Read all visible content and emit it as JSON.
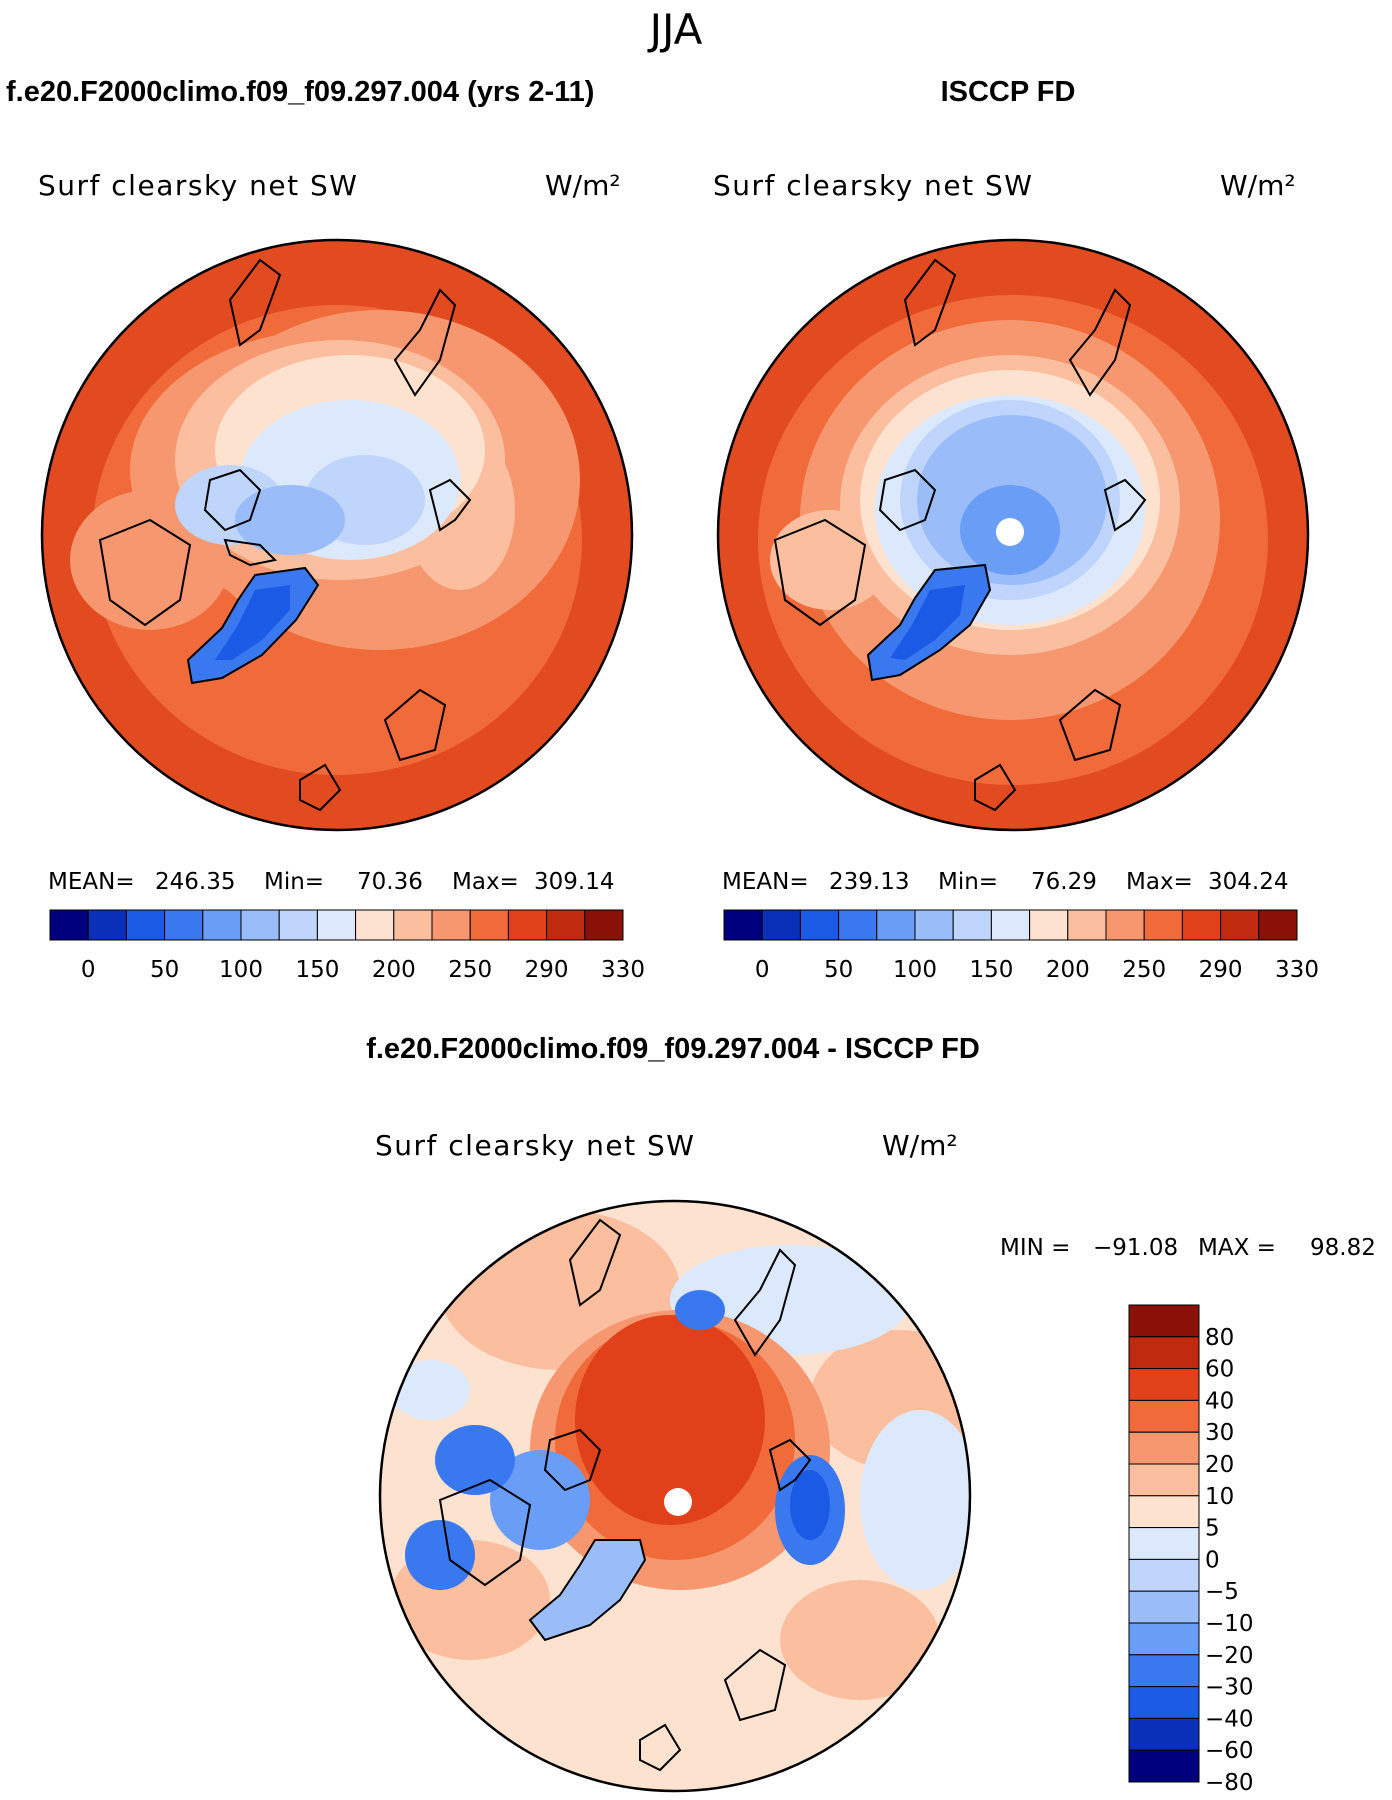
{
  "season": "JJA",
  "panels": [
    {
      "id": "model",
      "title": "f.e20.F2000climo.f09_f09.297.004 (yrs 2-11)",
      "variable": "Surf clearsky net SW",
      "units": "W/m²",
      "stats": {
        "mean_label": "MEAN=",
        "mean": "246.35",
        "min_label": "Min=",
        "min": "70.36",
        "max_label": "Max=",
        "max": "309.14"
      },
      "colorbar": {
        "colors": [
          "#00007f",
          "#0a2fb8",
          "#1a5ae5",
          "#3a78f0",
          "#6a9df5",
          "#9abdf9",
          "#bfd5fb",
          "#dce9fc",
          "#fde2cf",
          "#fbbfa0",
          "#f7976f",
          "#f06a3a",
          "#e0401a",
          "#c02a0f",
          "#8a1108"
        ],
        "labels": [
          "0",
          "50",
          "100",
          "150",
          "200",
          "250",
          "290",
          "330"
        ]
      }
    },
    {
      "id": "obs",
      "title": "ISCCP FD",
      "variable": "Surf clearsky net SW",
      "units": "W/m²",
      "stats": {
        "mean_label": "MEAN=",
        "mean": "239.13",
        "min_label": "Min=",
        "min": "76.29",
        "max_label": "Max=",
        "max": "304.24"
      },
      "colorbar": {
        "colors": [
          "#00007f",
          "#0a2fb8",
          "#1a5ae5",
          "#3a78f0",
          "#6a9df5",
          "#9abdf9",
          "#bfd5fb",
          "#dce9fc",
          "#fde2cf",
          "#fbbfa0",
          "#f7976f",
          "#f06a3a",
          "#e0401a",
          "#c02a0f",
          "#8a1108"
        ],
        "labels": [
          "0",
          "50",
          "100",
          "150",
          "200",
          "250",
          "290",
          "330"
        ]
      }
    }
  ],
  "difference": {
    "title": "f.e20.F2000climo.f09_f09.297.004 - ISCCP FD",
    "variable": "Surf clearsky net SW",
    "units": "W/m²",
    "min_label": "MIN =",
    "min": "−91.08",
    "max_label": "MAX =",
    "max": "98.82",
    "colorbar": {
      "colors": [
        "#8a1108",
        "#c02a0f",
        "#e0401a",
        "#f06a3a",
        "#f7976f",
        "#fbbfa0",
        "#fde2cf",
        "#dce9fc",
        "#bfd5fb",
        "#9abdf9",
        "#6a9df5",
        "#3a78f0",
        "#1a5ae5",
        "#0a2fb8",
        "#00007f"
      ],
      "labels": [
        "80",
        "60",
        "40",
        "30",
        "20",
        "10",
        "5",
        "0",
        "−5",
        "−10",
        "−20",
        "−30",
        "−40",
        "−60",
        "−80"
      ]
    }
  },
  "chart_data": [
    {
      "type": "heatmap",
      "projection": "north polar stereographic",
      "title": "f.e20.F2000climo.f09_f09.297.004 (yrs 2-11)",
      "variable": "Surf clearsky net SW",
      "units": "W/m2",
      "mean": 246.35,
      "min": 70.36,
      "max": 309.14,
      "levels": [
        0,
        50,
        100,
        150,
        200,
        250,
        290,
        330
      ]
    },
    {
      "type": "heatmap",
      "projection": "north polar stereographic",
      "title": "ISCCP FD",
      "variable": "Surf clearsky net SW",
      "units": "W/m2",
      "mean": 239.13,
      "min": 76.29,
      "max": 304.24,
      "levels": [
        0,
        50,
        100,
        150,
        200,
        250,
        290,
        330
      ]
    },
    {
      "type": "heatmap",
      "projection": "north polar stereographic",
      "title": "f.e20.F2000climo.f09_f09.297.004 - ISCCP FD",
      "variable": "Surf clearsky net SW",
      "units": "W/m2",
      "min": -91.08,
      "max": 98.82,
      "levels": [
        -80,
        -60,
        -40,
        -30,
        -20,
        -10,
        -5,
        0,
        5,
        10,
        20,
        30,
        40,
        60,
        80
      ]
    }
  ]
}
